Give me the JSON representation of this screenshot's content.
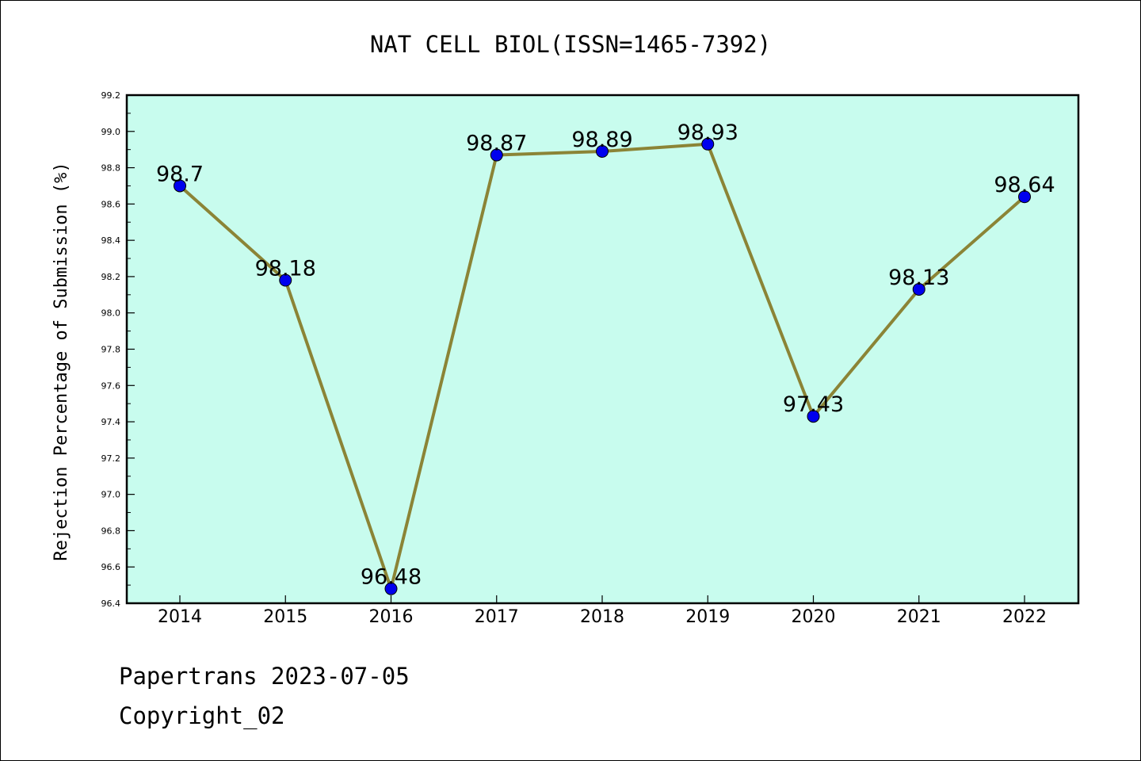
{
  "chart_data": {
    "type": "line",
    "title": "NAT CELL BIOL(ISSN=1465-7392)",
    "xlabel": "",
    "ylabel": "Rejection Percentage of Submission (%)",
    "categories": [
      "2014",
      "2015",
      "2016",
      "2017",
      "2018",
      "2019",
      "2020",
      "2021",
      "2022"
    ],
    "values": [
      98.7,
      98.18,
      96.48,
      98.87,
      98.89,
      98.93,
      97.43,
      98.13,
      98.64
    ],
    "data_labels": [
      "98.7",
      "98.18",
      "96.48",
      "98.87",
      "98.89",
      "98.93",
      "97.43",
      "98.13",
      "98.64"
    ],
    "ylim": [
      96.4,
      99.2
    ],
    "yticks": [
      "96.4",
      "96.6",
      "96.8",
      "97.0",
      "97.2",
      "97.4",
      "97.6",
      "97.8",
      "98.0",
      "98.2",
      "98.4",
      "98.6",
      "98.8",
      "99.0",
      "99.2"
    ],
    "grid": false,
    "legend": "none",
    "colors": {
      "plot_background": "#c8fcee",
      "line": "#8b8436",
      "marker": "#0000ee"
    }
  },
  "footer": {
    "line1": "Papertrans 2023-07-05",
    "line2": "Copyright_02"
  }
}
